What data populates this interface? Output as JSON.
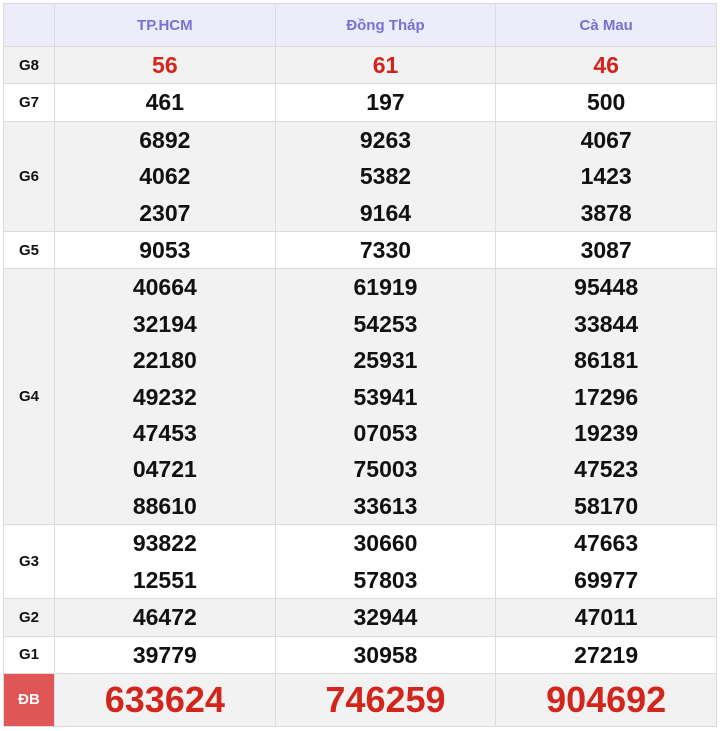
{
  "headers": [
    "",
    "TP.HCM",
    "Đồng Tháp",
    "Cà Mau"
  ],
  "colors": {
    "header_text": "#7b6fd6",
    "red": "#d2261d",
    "db_label_bg": "#e05555"
  },
  "rows": [
    {
      "label": "G8",
      "cols": [
        [
          "56"
        ],
        [
          "61"
        ],
        [
          "46"
        ]
      ]
    },
    {
      "label": "G7",
      "cols": [
        [
          "461"
        ],
        [
          "197"
        ],
        [
          "500"
        ]
      ]
    },
    {
      "label": "G6",
      "cols": [
        [
          "6892",
          "4062",
          "2307"
        ],
        [
          "9263",
          "5382",
          "9164"
        ],
        [
          "4067",
          "1423",
          "3878"
        ]
      ]
    },
    {
      "label": "G5",
      "cols": [
        [
          "9053"
        ],
        [
          "7330"
        ],
        [
          "3087"
        ]
      ]
    },
    {
      "label": "G4",
      "cols": [
        [
          "40664",
          "32194",
          "22180",
          "49232",
          "47453",
          "04721",
          "88610"
        ],
        [
          "61919",
          "54253",
          "25931",
          "53941",
          "07053",
          "75003",
          "33613"
        ],
        [
          "95448",
          "33844",
          "86181",
          "17296",
          "19239",
          "47523",
          "58170"
        ]
      ]
    },
    {
      "label": "G3",
      "cols": [
        [
          "93822",
          "12551"
        ],
        [
          "30660",
          "57803"
        ],
        [
          "47663",
          "69977"
        ]
      ]
    },
    {
      "label": "G2",
      "cols": [
        [
          "46472"
        ],
        [
          "32944"
        ],
        [
          "47011"
        ]
      ]
    },
    {
      "label": "G1",
      "cols": [
        [
          "39779"
        ],
        [
          "30958"
        ],
        [
          "27219"
        ]
      ]
    },
    {
      "label": "ĐB",
      "cols": [
        [
          "633624"
        ],
        [
          "746259"
        ],
        [
          "904692"
        ]
      ]
    }
  ]
}
